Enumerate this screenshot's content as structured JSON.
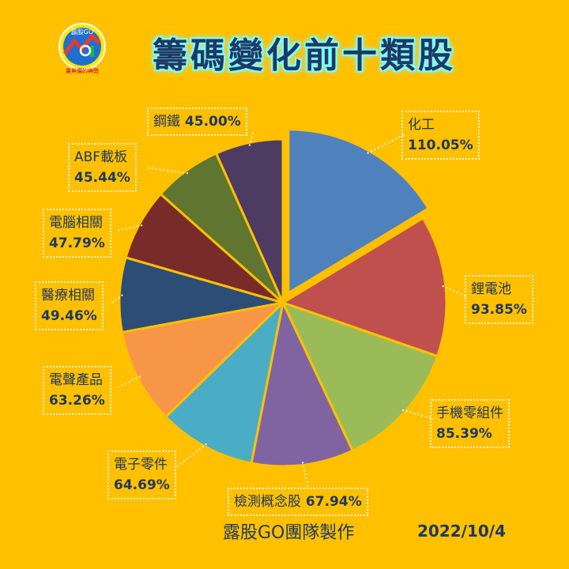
{
  "title": "籌碼變化前十類股",
  "logo": {
    "badge": "露股GO",
    "caption": "量與價的與勢",
    "colors": [
      "#E63B2E",
      "#22B14C",
      "#1F6FD1",
      "#FFE600"
    ]
  },
  "footer": {
    "maker": "露股GO團隊製作",
    "date": "2022/10/4"
  },
  "chart_data": {
    "type": "pie",
    "title": "籌碼變化前十類股",
    "exploded": "化工",
    "slices": [
      {
        "label": "化工",
        "value": 110.05,
        "display": "110.05%",
        "color": "#4F81BD"
      },
      {
        "label": "鋰電池",
        "value": 93.85,
        "display": "93.85%",
        "color": "#C0504D"
      },
      {
        "label": "手機零組件",
        "value": 85.39,
        "display": "85.39%",
        "color": "#9BBB59"
      },
      {
        "label": "檢測概念股",
        "value": 67.94,
        "display": "67.94%",
        "color": "#8064A2"
      },
      {
        "label": "電子零件",
        "value": 64.69,
        "display": "64.69%",
        "color": "#4BACC6"
      },
      {
        "label": "電聲產品",
        "value": 63.26,
        "display": "63.26%",
        "color": "#F79646"
      },
      {
        "label": "醫療相關",
        "value": 49.46,
        "display": "49.46%",
        "color": "#2C4D75"
      },
      {
        "label": "電腦相關",
        "value": 47.79,
        "display": "47.79%",
        "color": "#772C2A"
      },
      {
        "label": "ABF載板",
        "value": 45.44,
        "display": "45.44%",
        "color": "#5F7530"
      },
      {
        "label": "鋼鐵",
        "value": 45.0,
        "display": "45.00%",
        "color": "#4D3B62"
      }
    ]
  }
}
